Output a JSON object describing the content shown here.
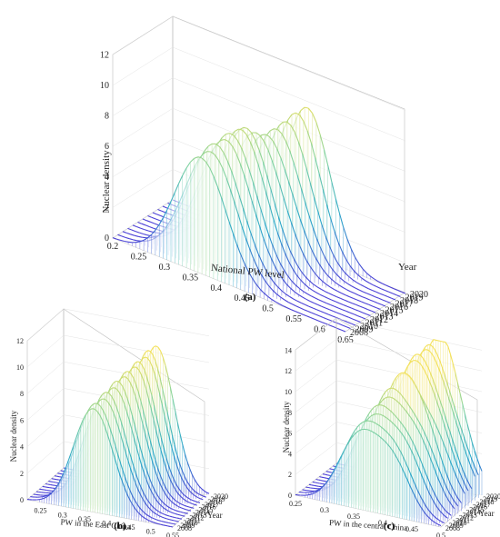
{
  "chart_data": [
    {
      "panel": "(a)",
      "type": "area",
      "chart_kind": "3d-kernel-density-waterfall",
      "title": "",
      "xlabel": "National PW level",
      "ylabel": "Year",
      "zlabel": "Nuclear density",
      "x_ticks": [
        "0.2",
        "0.25",
        "0.3",
        "0.35",
        "0.4",
        "0.45",
        "0.5",
        "0.55",
        "0.6",
        "0.65"
      ],
      "y_ticks": [
        "2008",
        "2009",
        "2010",
        "2011",
        "2012",
        "2013",
        "2014",
        "2015",
        "2016",
        "2017",
        "2018",
        "2019",
        "2020"
      ],
      "z_ticks": [
        "0",
        "2",
        "4",
        "6",
        "8",
        "10",
        "12"
      ],
      "xlim": [
        0.2,
        0.65
      ],
      "zlim": [
        0,
        12
      ],
      "colormap": [
        "#4b3fd6",
        "#2aa7c9",
        "#7fd2a0",
        "#f3e15b"
      ],
      "series": [
        {
          "year": "2008",
          "peaks": [
            {
              "x": 0.37,
              "height": 7.6,
              "sd": 0.05
            }
          ]
        },
        {
          "year": "2009",
          "peaks": [
            {
              "x": 0.38,
              "height": 7.9,
              "sd": 0.05
            }
          ]
        },
        {
          "year": "2010",
          "peaks": [
            {
              "x": 0.38,
              "height": 8.2,
              "sd": 0.05
            }
          ]
        },
        {
          "year": "2011",
          "peaks": [
            {
              "x": 0.39,
              "height": 8.4,
              "sd": 0.05
            }
          ]
        },
        {
          "year": "2012",
          "peaks": [
            {
              "x": 0.39,
              "height": 8.6,
              "sd": 0.05
            }
          ]
        },
        {
          "year": "2013",
          "peaks": [
            {
              "x": 0.4,
              "height": 8.8,
              "sd": 0.048
            }
          ]
        },
        {
          "year": "2014",
          "peaks": [
            {
              "x": 0.4,
              "height": 8.7,
              "sd": 0.048
            }
          ]
        },
        {
          "year": "2015",
          "peaks": [
            {
              "x": 0.41,
              "height": 8.3,
              "sd": 0.05
            }
          ]
        },
        {
          "year": "2016",
          "peaks": [
            {
              "x": 0.42,
              "height": 8.1,
              "sd": 0.05
            }
          ]
        },
        {
          "year": "2017",
          "peaks": [
            {
              "x": 0.43,
              "height": 8.4,
              "sd": 0.048
            }
          ]
        },
        {
          "year": "2018",
          "peaks": [
            {
              "x": 0.44,
              "height": 8.8,
              "sd": 0.046
            }
          ]
        },
        {
          "year": "2019",
          "peaks": [
            {
              "x": 0.45,
              "height": 9.3,
              "sd": 0.045
            }
          ]
        },
        {
          "year": "2020",
          "peaks": [
            {
              "x": 0.46,
              "height": 9.6,
              "sd": 0.044
            }
          ]
        }
      ]
    },
    {
      "panel": "(b)",
      "type": "area",
      "chart_kind": "3d-kernel-density-waterfall",
      "title": "",
      "xlabel": "PW in the East China",
      "ylabel": "Year",
      "zlabel": "Nuclear density",
      "x_ticks": [
        "0.25",
        "0.3",
        "0.35",
        "0.4",
        "0.45",
        "0.5",
        "0.55"
      ],
      "y_ticks": [
        "2008",
        "2009",
        "2010",
        "2011",
        "2012",
        "2013",
        "2014",
        "2015",
        "2016",
        "2017",
        "2018",
        "2019",
        "2020"
      ],
      "z_ticks": [
        "0",
        "2",
        "4",
        "6",
        "8",
        "10",
        "12"
      ],
      "xlim": [
        0.22,
        0.55
      ],
      "zlim": [
        0,
        12
      ],
      "colormap": [
        "#4b3fd6",
        "#2aa7c9",
        "#7fd2a0",
        "#f3e15b"
      ],
      "series": [
        {
          "year": "2008",
          "peaks": [
            {
              "x": 0.37,
              "height": 7.8,
              "sd": 0.045
            }
          ]
        },
        {
          "year": "2009",
          "peaks": [
            {
              "x": 0.37,
              "height": 8.0,
              "sd": 0.045
            }
          ]
        },
        {
          "year": "2010",
          "peaks": [
            {
              "x": 0.38,
              "height": 8.2,
              "sd": 0.045
            }
          ]
        },
        {
          "year": "2011",
          "peaks": [
            {
              "x": 0.38,
              "height": 8.5,
              "sd": 0.044
            }
          ]
        },
        {
          "year": "2012",
          "peaks": [
            {
              "x": 0.39,
              "height": 8.7,
              "sd": 0.044
            }
          ]
        },
        {
          "year": "2013",
          "peaks": [
            {
              "x": 0.39,
              "height": 9.0,
              "sd": 0.043
            }
          ]
        },
        {
          "year": "2014",
          "peaks": [
            {
              "x": 0.4,
              "height": 9.2,
              "sd": 0.043
            }
          ]
        },
        {
          "year": "2015",
          "peaks": [
            {
              "x": 0.4,
              "height": 9.4,
              "sd": 0.042
            }
          ]
        },
        {
          "year": "2016",
          "peaks": [
            {
              "x": 0.41,
              "height": 9.6,
              "sd": 0.042
            }
          ]
        },
        {
          "year": "2017",
          "peaks": [
            {
              "x": 0.41,
              "height": 9.8,
              "sd": 0.041
            }
          ]
        },
        {
          "year": "2018",
          "peaks": [
            {
              "x": 0.42,
              "height": 10.0,
              "sd": 0.041
            }
          ]
        },
        {
          "year": "2019",
          "peaks": [
            {
              "x": 0.42,
              "height": 10.3,
              "sd": 0.04
            }
          ]
        },
        {
          "year": "2020",
          "peaks": [
            {
              "x": 0.43,
              "height": 10.5,
              "sd": 0.04
            }
          ]
        }
      ]
    },
    {
      "panel": "(c)",
      "type": "area",
      "chart_kind": "3d-kernel-density-waterfall",
      "title": "",
      "xlabel": "PW in the central China",
      "ylabel": "Year",
      "zlabel": "Nuclear density",
      "x_ticks": [
        "0.25",
        "0.3",
        "0.35",
        "0.4",
        "0.45",
        "0.5"
      ],
      "y_ticks": [
        "2008",
        "2009",
        "2010",
        "2011",
        "2012",
        "2013",
        "2014",
        "2015",
        "2016",
        "2017",
        "2018",
        "2019",
        "2020"
      ],
      "z_ticks": [
        "0",
        "2",
        "4",
        "6",
        "8",
        "10",
        "12",
        "14"
      ],
      "xlim": [
        0.25,
        0.5
      ],
      "zlim": [
        0,
        14
      ],
      "colormap": [
        "#4b3fd6",
        "#2aa7c9",
        "#7fd2a0",
        "#f3e15b"
      ],
      "series": [
        {
          "year": "2008",
          "peaks": [
            {
              "x": 0.36,
              "height": 7.0,
              "sd": 0.035
            },
            {
              "x": 0.42,
              "height": 4.5,
              "sd": 0.03
            }
          ]
        },
        {
          "year": "2009",
          "peaks": [
            {
              "x": 0.36,
              "height": 7.5,
              "sd": 0.035
            },
            {
              "x": 0.42,
              "height": 4.8,
              "sd": 0.03
            }
          ]
        },
        {
          "year": "2010",
          "peaks": [
            {
              "x": 0.37,
              "height": 8.0,
              "sd": 0.035
            },
            {
              "x": 0.43,
              "height": 5.0,
              "sd": 0.03
            }
          ]
        },
        {
          "year": "2011",
          "peaks": [
            {
              "x": 0.37,
              "height": 8.6,
              "sd": 0.034
            },
            {
              "x": 0.43,
              "height": 5.2,
              "sd": 0.03
            }
          ]
        },
        {
          "year": "2012",
          "peaks": [
            {
              "x": 0.38,
              "height": 9.2,
              "sd": 0.034
            },
            {
              "x": 0.44,
              "height": 5.4,
              "sd": 0.03
            }
          ]
        },
        {
          "year": "2013",
          "peaks": [
            {
              "x": 0.38,
              "height": 9.8,
              "sd": 0.033
            },
            {
              "x": 0.44,
              "height": 5.5,
              "sd": 0.03
            }
          ]
        },
        {
          "year": "2014",
          "peaks": [
            {
              "x": 0.39,
              "height": 10.3,
              "sd": 0.033
            },
            {
              "x": 0.44,
              "height": 5.6,
              "sd": 0.03
            }
          ]
        },
        {
          "year": "2015",
          "peaks": [
            {
              "x": 0.39,
              "height": 10.8,
              "sd": 0.032
            },
            {
              "x": 0.45,
              "height": 5.6,
              "sd": 0.03
            }
          ]
        },
        {
          "year": "2016",
          "peaks": [
            {
              "x": 0.4,
              "height": 11.2,
              "sd": 0.032
            },
            {
              "x": 0.45,
              "height": 5.5,
              "sd": 0.03
            }
          ]
        },
        {
          "year": "2017",
          "peaks": [
            {
              "x": 0.4,
              "height": 11.6,
              "sd": 0.031
            },
            {
              "x": 0.45,
              "height": 5.4,
              "sd": 0.03
            }
          ]
        },
        {
          "year": "2018",
          "peaks": [
            {
              "x": 0.41,
              "height": 12.0,
              "sd": 0.031
            },
            {
              "x": 0.46,
              "height": 5.2,
              "sd": 0.03
            }
          ]
        },
        {
          "year": "2019",
          "peaks": [
            {
              "x": 0.41,
              "height": 12.3,
              "sd": 0.03
            },
            {
              "x": 0.46,
              "height": 5.0,
              "sd": 0.03
            }
          ]
        },
        {
          "year": "2020",
          "peaks": [
            {
              "x": 0.42,
              "height": 12.6,
              "sd": 0.03
            },
            {
              "x": 0.46,
              "height": 4.8,
              "sd": 0.03
            }
          ]
        }
      ]
    }
  ]
}
